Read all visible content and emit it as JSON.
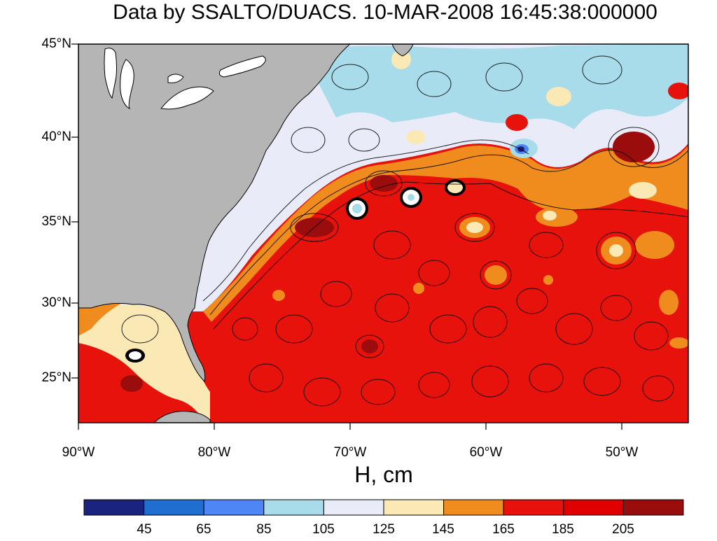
{
  "title": "Data by SSALTO/DUACS. 10-MAR-2008 16:45:38:000000",
  "xlabel": "H, cm",
  "lat_labels": [
    "45°N",
    "40°N",
    "35°N",
    "30°N",
    "25°N"
  ],
  "lon_labels": [
    "90°W",
    "80°W",
    "70°W",
    "60°W",
    "50°W"
  ],
  "colorbar": {
    "colors": [
      "#1a237e",
      "#1e6fd0",
      "#4f86f7",
      "#a9dcea",
      "#e9ecf8",
      "#fbe9b5",
      "#f08b1e",
      "#e8120c",
      "#e00000",
      "#9b0c0c"
    ],
    "ticks": [
      "45",
      "65",
      "85",
      "105",
      "125",
      "145",
      "165",
      "185",
      "205"
    ]
  },
  "colors": {
    "land": "#b5b5b5",
    "lakes": "#ffffff",
    "ocean_high": "#e8120c",
    "ocean_mid": "#f08b1e",
    "ocean_low": "#a9dcea"
  }
}
